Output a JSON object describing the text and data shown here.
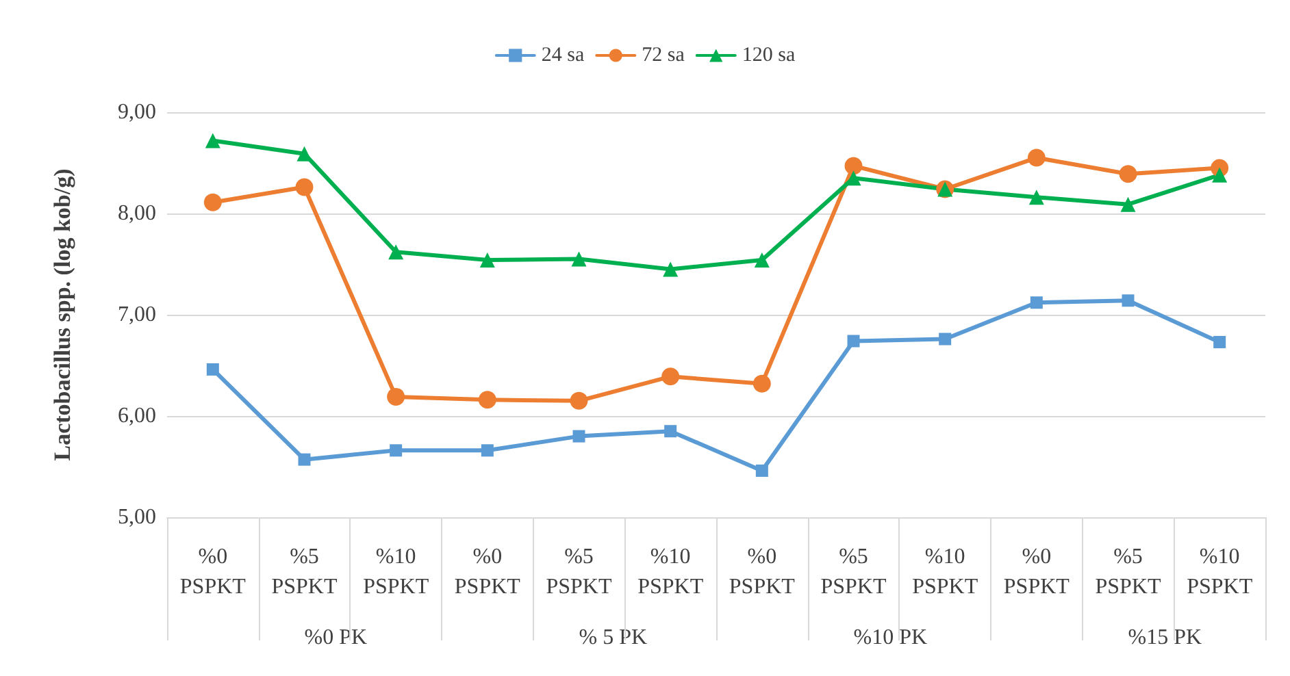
{
  "chart_data": {
    "type": "line",
    "ylabel": "Lactobacillus spp. (log kob/g)",
    "categories": [
      "%0\nPSPKT",
      "%5\nPSPKT",
      "%10\nPSPKT",
      "%0\nPSPKT",
      "%5\nPSPKT",
      "%10\nPSPKT",
      "%0\nPSPKT",
      "%5\nPSPKT",
      "%10\nPSPKT",
      "%0\nPSPKT",
      "%5\nPSPKT",
      "%10\nPSPKT"
    ],
    "annotations": [
      "%0 PK",
      "% 5 PK",
      "%10 PK",
      "%15 PK"
    ],
    "series": [
      {
        "name": "24 sa",
        "color": "#5b9bd5",
        "marker": "square",
        "values": [
          6.46,
          5.57,
          5.66,
          5.66,
          5.8,
          5.85,
          5.46,
          6.74,
          6.76,
          7.12,
          7.14,
          6.73
        ]
      },
      {
        "name": "72 sa",
        "color": "#ed7d31",
        "marker": "circle",
        "values": [
          8.11,
          8.26,
          6.19,
          6.16,
          6.15,
          6.39,
          6.32,
          8.47,
          8.24,
          8.55,
          8.39,
          8.45
        ]
      },
      {
        "name": "120 sa",
        "color": "#00b050",
        "marker": "triangle",
        "values": [
          8.72,
          8.59,
          7.62,
          7.54,
          7.55,
          7.45,
          7.54,
          8.35,
          8.24,
          8.16,
          8.09,
          8.38
        ]
      }
    ],
    "ylim": [
      5,
      9
    ],
    "yticks": [
      {
        "value": 5,
        "label": "5,00"
      },
      {
        "value": 6,
        "label": "6,00"
      },
      {
        "value": 7,
        "label": "7,00"
      },
      {
        "value": 8,
        "label": "8,00"
      },
      {
        "value": 9,
        "label": "9,00"
      }
    ],
    "grid": "y",
    "legend": "top"
  }
}
